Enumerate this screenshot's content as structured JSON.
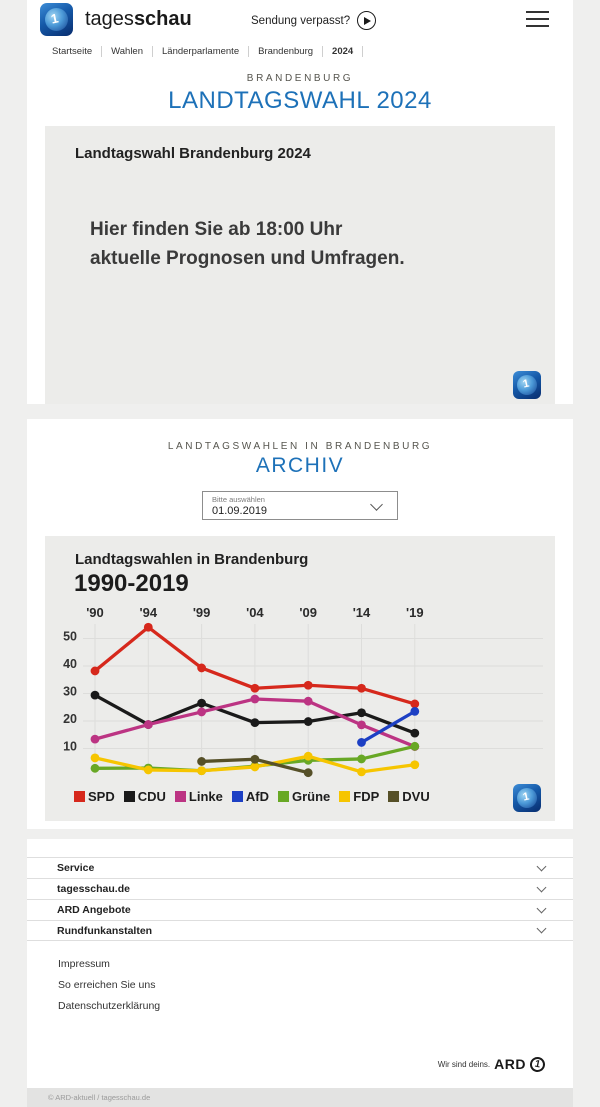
{
  "header": {
    "brand_regular": "tages",
    "brand_bold": "schau",
    "sendung_verpasst_label": "Sendung verpasst?"
  },
  "icons": {
    "menu": "hamburger-menu",
    "play": "play",
    "dropdown": "chevron-down",
    "accordion": "chevron-down"
  },
  "breadcrumb": {
    "items": [
      {
        "label": "Startseite",
        "active": false
      },
      {
        "label": "Wahlen",
        "active": false
      },
      {
        "label": "Länderparlamente",
        "active": false
      },
      {
        "label": "Brandenburg",
        "active": false
      },
      {
        "label": "2024",
        "active": true
      }
    ]
  },
  "hero": {
    "kicker": "BRANDENBURG",
    "title": "LANDTAGSWAHL 2024",
    "card": {
      "heading": "Landtagswahl Brandenburg 2024",
      "line1": "Hier finden Sie ab 18:00 Uhr",
      "line2": "aktuelle Prognosen und Umfragen."
    }
  },
  "archive": {
    "kicker": "LANDTAGSWAHLEN IN BRANDENBURG",
    "title": "ARCHIV",
    "dropdown": {
      "label": "Bitte auswählen",
      "value": "01.09.2019"
    }
  },
  "chart_data": {
    "type": "line",
    "title": "Landtagswahlen in Brandenburg",
    "subtitle": "1990-2019",
    "unit": "percent",
    "x_tick_labels": [
      "'90",
      "'94",
      "'99",
      "'04",
      "'09",
      "'14",
      "'19"
    ],
    "x_years": [
      1990,
      1994,
      1999,
      2004,
      2009,
      2014,
      2019
    ],
    "y_ticks": [
      10,
      20,
      30,
      40,
      50
    ],
    "ylim": [
      0,
      58
    ],
    "grid": true,
    "legend_position": "bottom",
    "series": [
      {
        "name": "SPD",
        "color": "#d6281c",
        "values": [
          38.2,
          54.1,
          39.3,
          31.9,
          33.0,
          31.9,
          26.2
        ]
      },
      {
        "name": "CDU",
        "color": "#1a1a1a",
        "values": [
          29.4,
          18.7,
          26.5,
          19.4,
          19.8,
          23.0,
          15.6
        ]
      },
      {
        "name": "Linke",
        "color": "#bc3483",
        "values": [
          13.4,
          18.7,
          23.3,
          28.0,
          27.2,
          18.6,
          10.7
        ]
      },
      {
        "name": "AfD",
        "color": "#1d40c4",
        "values": [
          null,
          null,
          null,
          null,
          null,
          12.2,
          23.5
        ]
      },
      {
        "name": "Grüne",
        "color": "#68a825",
        "values": [
          2.8,
          2.9,
          1.9,
          3.6,
          5.7,
          6.2,
          10.8
        ]
      },
      {
        "name": "FDP",
        "color": "#f6c500",
        "values": [
          6.6,
          2.2,
          1.9,
          3.3,
          7.2,
          1.5,
          4.1
        ]
      },
      {
        "name": "DVU",
        "color": "#565028",
        "values": [
          null,
          null,
          5.3,
          6.1,
          1.2,
          null,
          null
        ]
      }
    ]
  },
  "footer": {
    "accordions": [
      {
        "label": "Service"
      },
      {
        "label": "tagesschau.de"
      },
      {
        "label": "ARD Angebote"
      },
      {
        "label": "Rundfunkanstalten"
      }
    ],
    "links": [
      {
        "label": "Impressum"
      },
      {
        "label": "So erreichen Sie uns"
      },
      {
        "label": "Datenschutzerklärung"
      }
    ],
    "ard_claim": "Wir sind deins.",
    "ard_brand": "ARD",
    "copyright": "© ARD-aktuell / tagesschau.de"
  },
  "colors": {
    "accent_blue": "#1d71b8",
    "card_bg": "#ececea",
    "page_bg": "#efefee",
    "gridline": "#dddddb"
  }
}
